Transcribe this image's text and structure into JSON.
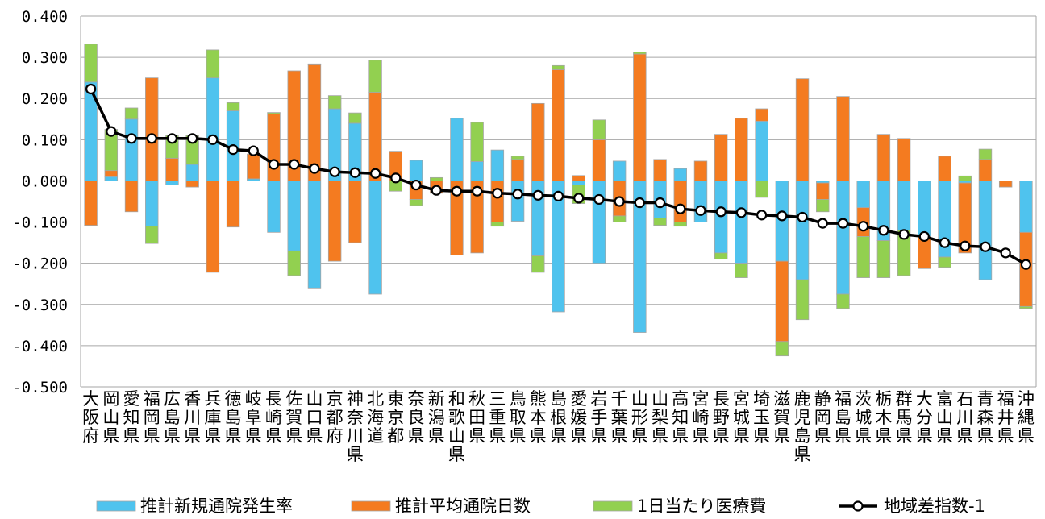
{
  "chart_data": {
    "type": "bar",
    "stacked": true,
    "categories": [
      "大阪府",
      "岡山県",
      "愛知県",
      "福岡県",
      "広島県",
      "香川県",
      "兵庫県",
      "徳島県",
      "岐阜県",
      "長崎県",
      "佐賀県",
      "山口県",
      "京都府",
      "神奈川県",
      "北海道",
      "東京都",
      "奈良県",
      "新潟県",
      "和歌山県",
      "秋田県",
      "三重県",
      "鳥取県",
      "熊本県",
      "島根県",
      "愛媛県",
      "岩手県",
      "千葉県",
      "山形県",
      "山梨県",
      "高知県",
      "宮崎県",
      "長野県",
      "宮城県",
      "埼玉県",
      "滋賀県",
      "鹿児島県",
      "静岡県",
      "福島県",
      "茨城県",
      "栃木県",
      "群馬県",
      "大分県",
      "富山県",
      "石川県",
      "青森県",
      "福井県",
      "沖縄県"
    ],
    "series": [
      {
        "name": "推計新規通院発生率",
        "kind": "bar",
        "color": "#4FC3EE",
        "values": [
          0.24,
          0.01,
          0.15,
          -0.11,
          -0.01,
          0.04,
          0.25,
          0.17,
          0.005,
          -0.125,
          -0.17,
          -0.26,
          0.175,
          0.14,
          -0.275,
          0.0,
          0.05,
          0.0,
          0.152,
          0.047,
          0.075,
          -0.098,
          -0.182,
          -0.318,
          -0.01,
          -0.2,
          0.048,
          -0.368,
          -0.09,
          0.03,
          -0.1,
          -0.175,
          -0.2,
          0.145,
          -0.195,
          -0.24,
          -0.005,
          -0.275,
          -0.065,
          -0.145,
          -0.12,
          -0.135,
          -0.185,
          -0.005,
          -0.24,
          0.0,
          -0.125
        ]
      },
      {
        "name": "推計平均通院日数",
        "kind": "bar",
        "color": "#F47B20",
        "values": [
          -0.108,
          0.015,
          -0.075,
          0.25,
          0.055,
          -0.015,
          -0.222,
          -0.112,
          0.06,
          0.163,
          0.267,
          0.282,
          -0.195,
          -0.15,
          0.215,
          0.072,
          -0.045,
          -0.03,
          -0.18,
          -0.175,
          -0.1,
          0.052,
          0.188,
          0.27,
          0.013,
          0.1,
          -0.085,
          0.308,
          0.052,
          -0.1,
          0.048,
          0.113,
          0.152,
          0.03,
          -0.195,
          0.248,
          -0.04,
          0.205,
          -0.07,
          0.113,
          0.103,
          -0.078,
          0.06,
          -0.17,
          0.052,
          -0.015,
          -0.18
        ]
      },
      {
        "name": "1日当たり医療費",
        "kind": "bar",
        "color": "#92D050",
        "values": [
          0.092,
          0.1,
          0.027,
          -0.042,
          0.055,
          0.07,
          0.068,
          0.02,
          0.0,
          0.003,
          -0.06,
          0.002,
          0.032,
          0.025,
          0.078,
          -0.025,
          -0.015,
          0.008,
          0.0,
          0.095,
          -0.01,
          0.008,
          -0.04,
          0.01,
          -0.045,
          0.048,
          -0.015,
          0.005,
          -0.018,
          -0.01,
          0.0,
          -0.015,
          -0.035,
          -0.04,
          -0.035,
          -0.097,
          -0.03,
          -0.035,
          -0.1,
          -0.09,
          -0.11,
          0.0,
          -0.025,
          0.012,
          0.025,
          0.0,
          -0.005
        ]
      },
      {
        "name": "地域差指数-1",
        "kind": "line",
        "color": "#000000",
        "values": [
          0.223,
          0.12,
          0.103,
          0.103,
          0.103,
          0.103,
          0.1,
          0.076,
          0.073,
          0.04,
          0.04,
          0.03,
          0.022,
          0.02,
          0.018,
          0.007,
          -0.01,
          -0.023,
          -0.025,
          -0.025,
          -0.03,
          -0.032,
          -0.035,
          -0.037,
          -0.042,
          -0.045,
          -0.05,
          -0.053,
          -0.053,
          -0.068,
          -0.072,
          -0.075,
          -0.077,
          -0.083,
          -0.085,
          -0.088,
          -0.103,
          -0.103,
          -0.11,
          -0.12,
          -0.13,
          -0.135,
          -0.15,
          -0.158,
          -0.16,
          -0.175,
          -0.203
        ]
      }
    ],
    "xlabel": "",
    "ylabel": "",
    "ylim": [
      -0.5,
      0.4
    ],
    "yticks": [
      0.4,
      0.3,
      0.2,
      0.1,
      0.0,
      -0.1,
      -0.2,
      -0.3,
      -0.4,
      -0.5
    ],
    "ytick_labels": [
      "0.400",
      "0.300",
      "0.200",
      "0.100",
      "0.000",
      "-0.100",
      "-0.200",
      "-0.300",
      "-0.400",
      "-0.500"
    ],
    "grid": true,
    "legend_position": "bottom"
  }
}
